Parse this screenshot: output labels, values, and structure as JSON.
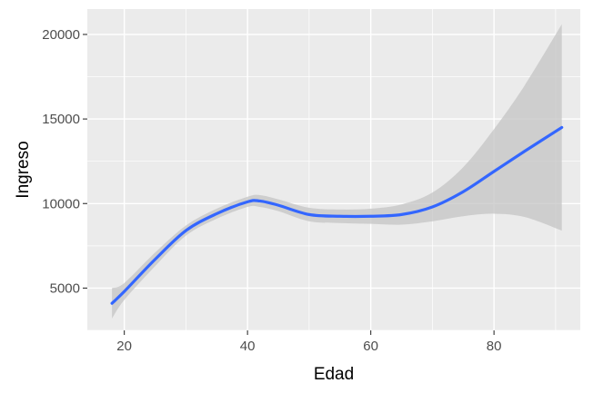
{
  "chart_data": {
    "type": "line",
    "xlabel": "Edad",
    "ylabel": "Ingreso",
    "xlim": [
      14,
      94
    ],
    "ylim": [
      2500,
      21500
    ],
    "x_ticks": [
      20,
      40,
      60,
      80
    ],
    "y_ticks": [
      5000,
      10000,
      15000,
      20000
    ],
    "x_tick_labels": [
      "20",
      "40",
      "60",
      "80"
    ],
    "y_tick_labels": [
      "5000",
      "10000",
      "15000",
      "20000"
    ],
    "grid": true,
    "legend": "none",
    "colors": {
      "panel": "#ebebeb",
      "grid": "#ffffff",
      "line": "#3366ff",
      "ribbon": "#c4c4c4",
      "ribbon_opacity": 0.75
    },
    "series": [
      {
        "x": [
          18,
          20,
          25,
          30,
          35,
          40,
          42,
          45,
          50,
          55,
          60,
          65,
          70,
          75,
          80,
          85,
          91
        ],
        "y": [
          4100,
          4800,
          6700,
          8400,
          9400,
          10100,
          10150,
          9900,
          9350,
          9250,
          9250,
          9350,
          9800,
          10700,
          11900,
          13100,
          14500
        ],
        "lower": [
          3200,
          4300,
          6300,
          8100,
          9100,
          9800,
          9800,
          9550,
          8950,
          8850,
          8800,
          8750,
          8950,
          9250,
          9400,
          9200,
          8400
        ],
        "upper": [
          5000,
          5300,
          7100,
          8700,
          9700,
          10400,
          10500,
          10250,
          9750,
          9650,
          9700,
          9950,
          10650,
          12150,
          14400,
          17000,
          20600
        ]
      }
    ]
  }
}
